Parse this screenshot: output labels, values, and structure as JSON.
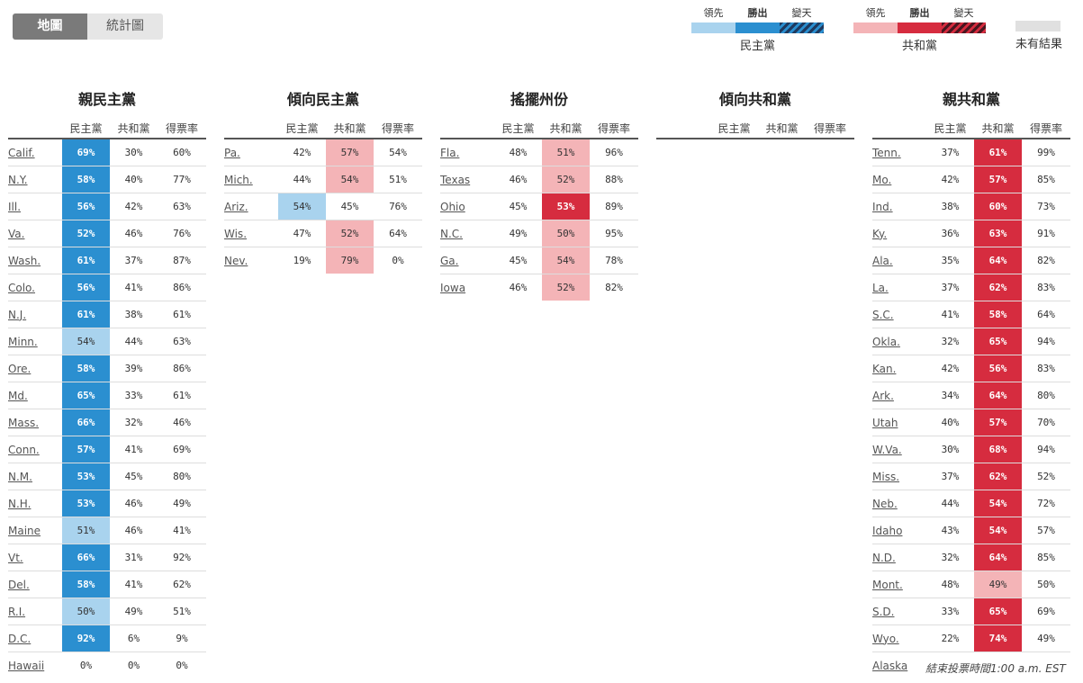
{
  "toggle": {
    "map_label": "地圖",
    "stats_label": "統計圖"
  },
  "legend": {
    "dem": {
      "lead": "領先",
      "win": "勝出",
      "flip": "變天",
      "party": "民主黨"
    },
    "rep": {
      "lead": "領先",
      "win": "勝出",
      "flip": "變天",
      "party": "共和黨"
    },
    "none": {
      "label": "未有結果"
    },
    "colors": {
      "dem_win": "#2b8fd0",
      "dem_lead": "#a9d3ee",
      "rep_win": "#d62c3f",
      "rep_lead": "#f4b4b7",
      "none": "#e0e0e0"
    }
  },
  "headers": {
    "dem": "民主黨",
    "rep": "共和黨",
    "rate": "得票率"
  },
  "columns": [
    {
      "title": "親民主黨",
      "rows": [
        {
          "state": "Calif.",
          "dem": "69%",
          "rep": "30%",
          "rate": "60%",
          "hl": "d-win",
          "side": "dem"
        },
        {
          "state": "N.Y.",
          "dem": "58%",
          "rep": "40%",
          "rate": "77%",
          "hl": "d-win",
          "side": "dem"
        },
        {
          "state": "Ill.",
          "dem": "56%",
          "rep": "42%",
          "rate": "63%",
          "hl": "d-win",
          "side": "dem"
        },
        {
          "state": "Va.",
          "dem": "52%",
          "rep": "46%",
          "rate": "76%",
          "hl": "d-win",
          "side": "dem"
        },
        {
          "state": "Wash.",
          "dem": "61%",
          "rep": "37%",
          "rate": "87%",
          "hl": "d-win",
          "side": "dem"
        },
        {
          "state": "Colo.",
          "dem": "56%",
          "rep": "41%",
          "rate": "86%",
          "hl": "d-win",
          "side": "dem"
        },
        {
          "state": "N.J.",
          "dem": "61%",
          "rep": "38%",
          "rate": "61%",
          "hl": "d-win",
          "side": "dem"
        },
        {
          "state": "Minn.",
          "dem": "54%",
          "rep": "44%",
          "rate": "63%",
          "hl": "d-lead",
          "side": "dem"
        },
        {
          "state": "Ore.",
          "dem": "58%",
          "rep": "39%",
          "rate": "86%",
          "hl": "d-win",
          "side": "dem"
        },
        {
          "state": "Md.",
          "dem": "65%",
          "rep": "33%",
          "rate": "61%",
          "hl": "d-win",
          "side": "dem"
        },
        {
          "state": "Mass.",
          "dem": "66%",
          "rep": "32%",
          "rate": "46%",
          "hl": "d-win",
          "side": "dem"
        },
        {
          "state": "Conn.",
          "dem": "57%",
          "rep": "41%",
          "rate": "69%",
          "hl": "d-win",
          "side": "dem"
        },
        {
          "state": "N.M.",
          "dem": "53%",
          "rep": "45%",
          "rate": "80%",
          "hl": "d-win",
          "side": "dem"
        },
        {
          "state": "N.H.",
          "dem": "53%",
          "rep": "46%",
          "rate": "49%",
          "hl": "d-win",
          "side": "dem"
        },
        {
          "state": "Maine",
          "dem": "51%",
          "rep": "46%",
          "rate": "41%",
          "hl": "d-lead",
          "side": "dem"
        },
        {
          "state": "Vt.",
          "dem": "66%",
          "rep": "31%",
          "rate": "92%",
          "hl": "d-win",
          "side": "dem"
        },
        {
          "state": "Del.",
          "dem": "58%",
          "rep": "41%",
          "rate": "62%",
          "hl": "d-win",
          "side": "dem"
        },
        {
          "state": "R.I.",
          "dem": "50%",
          "rep": "49%",
          "rate": "51%",
          "hl": "d-lead",
          "side": "dem"
        },
        {
          "state": "D.C.",
          "dem": "92%",
          "rep": "6%",
          "rate": "9%",
          "hl": "d-win",
          "side": "dem"
        },
        {
          "state": "Hawaii",
          "dem": "0%",
          "rep": "0%",
          "rate": "0%",
          "hl": "",
          "side": "dem"
        }
      ]
    },
    {
      "title": "傾向民主黨",
      "rows": [
        {
          "state": "Pa.",
          "dem": "42%",
          "rep": "57%",
          "rate": "54%",
          "hl": "r-lead",
          "side": "rep"
        },
        {
          "state": "Mich.",
          "dem": "44%",
          "rep": "54%",
          "rate": "51%",
          "hl": "r-lead",
          "side": "rep"
        },
        {
          "state": "Ariz.",
          "dem": "54%",
          "rep": "45%",
          "rate": "76%",
          "hl": "d-lead",
          "side": "dem"
        },
        {
          "state": "Wis.",
          "dem": "47%",
          "rep": "52%",
          "rate": "64%",
          "hl": "r-lead",
          "side": "rep"
        },
        {
          "state": "Nev.",
          "dem": "19%",
          "rep": "79%",
          "rate": "0%",
          "hl": "r-lead",
          "side": "rep"
        }
      ]
    },
    {
      "title": "搖擺州份",
      "rows": [
        {
          "state": "Fla.",
          "dem": "48%",
          "rep": "51%",
          "rate": "96%",
          "hl": "r-lead",
          "side": "rep"
        },
        {
          "state": "Texas",
          "dem": "46%",
          "rep": "52%",
          "rate": "88%",
          "hl": "r-lead",
          "side": "rep"
        },
        {
          "state": "Ohio",
          "dem": "45%",
          "rep": "53%",
          "rate": "89%",
          "hl": "r-win",
          "side": "rep"
        },
        {
          "state": "N.C.",
          "dem": "49%",
          "rep": "50%",
          "rate": "95%",
          "hl": "r-lead",
          "side": "rep"
        },
        {
          "state": "Ga.",
          "dem": "45%",
          "rep": "54%",
          "rate": "78%",
          "hl": "r-lead",
          "side": "rep"
        },
        {
          "state": "Iowa",
          "dem": "46%",
          "rep": "52%",
          "rate": "82%",
          "hl": "r-lead",
          "side": "rep"
        }
      ]
    },
    {
      "title": "傾向共和黨",
      "rows": []
    },
    {
      "title": "親共和黨",
      "rows": [
        {
          "state": "Tenn.",
          "dem": "37%",
          "rep": "61%",
          "rate": "99%",
          "hl": "r-win",
          "side": "rep"
        },
        {
          "state": "Mo.",
          "dem": "42%",
          "rep": "57%",
          "rate": "85%",
          "hl": "r-win",
          "side": "rep"
        },
        {
          "state": "Ind.",
          "dem": "38%",
          "rep": "60%",
          "rate": "73%",
          "hl": "r-win",
          "side": "rep"
        },
        {
          "state": "Ky.",
          "dem": "36%",
          "rep": "63%",
          "rate": "91%",
          "hl": "r-win",
          "side": "rep"
        },
        {
          "state": "Ala.",
          "dem": "35%",
          "rep": "64%",
          "rate": "82%",
          "hl": "r-win",
          "side": "rep"
        },
        {
          "state": "La.",
          "dem": "37%",
          "rep": "62%",
          "rate": "83%",
          "hl": "r-win",
          "side": "rep"
        },
        {
          "state": "S.C.",
          "dem": "41%",
          "rep": "58%",
          "rate": "64%",
          "hl": "r-win",
          "side": "rep"
        },
        {
          "state": "Okla.",
          "dem": "32%",
          "rep": "65%",
          "rate": "94%",
          "hl": "r-win",
          "side": "rep"
        },
        {
          "state": "Kan.",
          "dem": "42%",
          "rep": "56%",
          "rate": "83%",
          "hl": "r-win",
          "side": "rep"
        },
        {
          "state": "Ark.",
          "dem": "34%",
          "rep": "64%",
          "rate": "80%",
          "hl": "r-win",
          "side": "rep"
        },
        {
          "state": "Utah",
          "dem": "40%",
          "rep": "57%",
          "rate": "70%",
          "hl": "r-win",
          "side": "rep"
        },
        {
          "state": "W.Va.",
          "dem": "30%",
          "rep": "68%",
          "rate": "94%",
          "hl": "r-win",
          "side": "rep"
        },
        {
          "state": "Miss.",
          "dem": "37%",
          "rep": "62%",
          "rate": "52%",
          "hl": "r-win",
          "side": "rep"
        },
        {
          "state": "Neb.",
          "dem": "44%",
          "rep": "54%",
          "rate": "72%",
          "hl": "r-win",
          "side": "rep"
        },
        {
          "state": "Idaho",
          "dem": "43%",
          "rep": "54%",
          "rate": "57%",
          "hl": "r-win",
          "side": "rep"
        },
        {
          "state": "N.D.",
          "dem": "32%",
          "rep": "64%",
          "rate": "85%",
          "hl": "r-win",
          "side": "rep"
        },
        {
          "state": "Mont.",
          "dem": "48%",
          "rep": "49%",
          "rate": "50%",
          "hl": "r-lead",
          "side": "rep"
        },
        {
          "state": "S.D.",
          "dem": "33%",
          "rep": "65%",
          "rate": "69%",
          "hl": "r-win",
          "side": "rep"
        },
        {
          "state": "Wyo.",
          "dem": "22%",
          "rep": "74%",
          "rate": "49%",
          "hl": "r-win",
          "side": "rep"
        },
        {
          "state": "Alaska",
          "dem": "",
          "rep": "",
          "rate": "",
          "hl": "",
          "side": "rep"
        }
      ]
    }
  ],
  "alaska_note": "結束投票時間1:00 a.m. EST"
}
